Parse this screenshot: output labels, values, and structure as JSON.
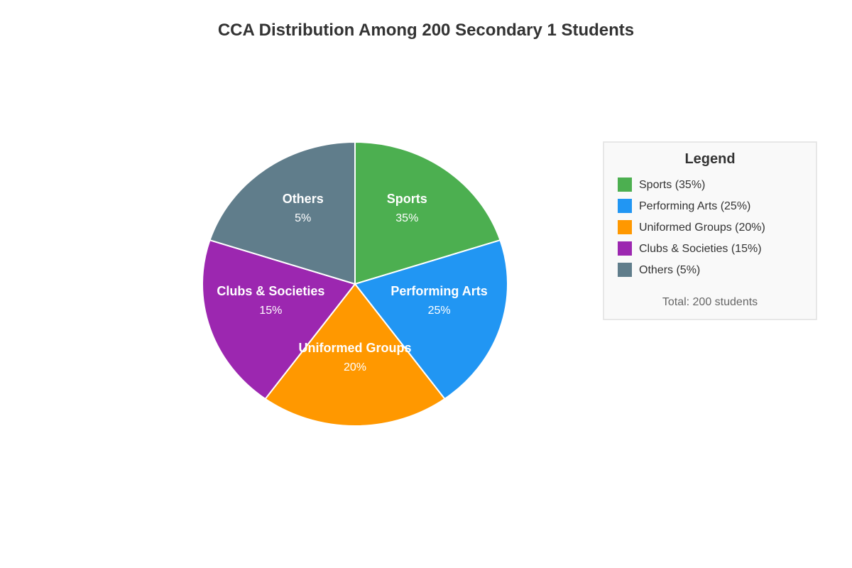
{
  "chart_data": {
    "type": "pie",
    "title": "CCA Distribution Among 200 Secondary 1 Students",
    "total_label": "Total: 200 students",
    "legend_title": "Legend",
    "legend_position": "right",
    "slices": [
      {
        "name": "Sports",
        "value": 35,
        "pct_label": "35%",
        "legend_label": "Sports (35%)",
        "color": "#4caf50"
      },
      {
        "name": "Performing Arts",
        "value": 25,
        "pct_label": "25%",
        "legend_label": "Performing Arts (25%)",
        "color": "#2196f3"
      },
      {
        "name": "Uniformed Groups",
        "value": 20,
        "pct_label": "20%",
        "legend_label": "Uniformed Groups (20%)",
        "color": "#ff9800"
      },
      {
        "name": "Clubs & Societies",
        "value": 15,
        "pct_label": "15%",
        "legend_label": "Clubs & Societies (15%)",
        "color": "#9c27b0"
      },
      {
        "name": "Others",
        "value": 5,
        "pct_label": "5%",
        "legend_label": "Others (5%)",
        "color": "#607d8b"
      }
    ]
  }
}
